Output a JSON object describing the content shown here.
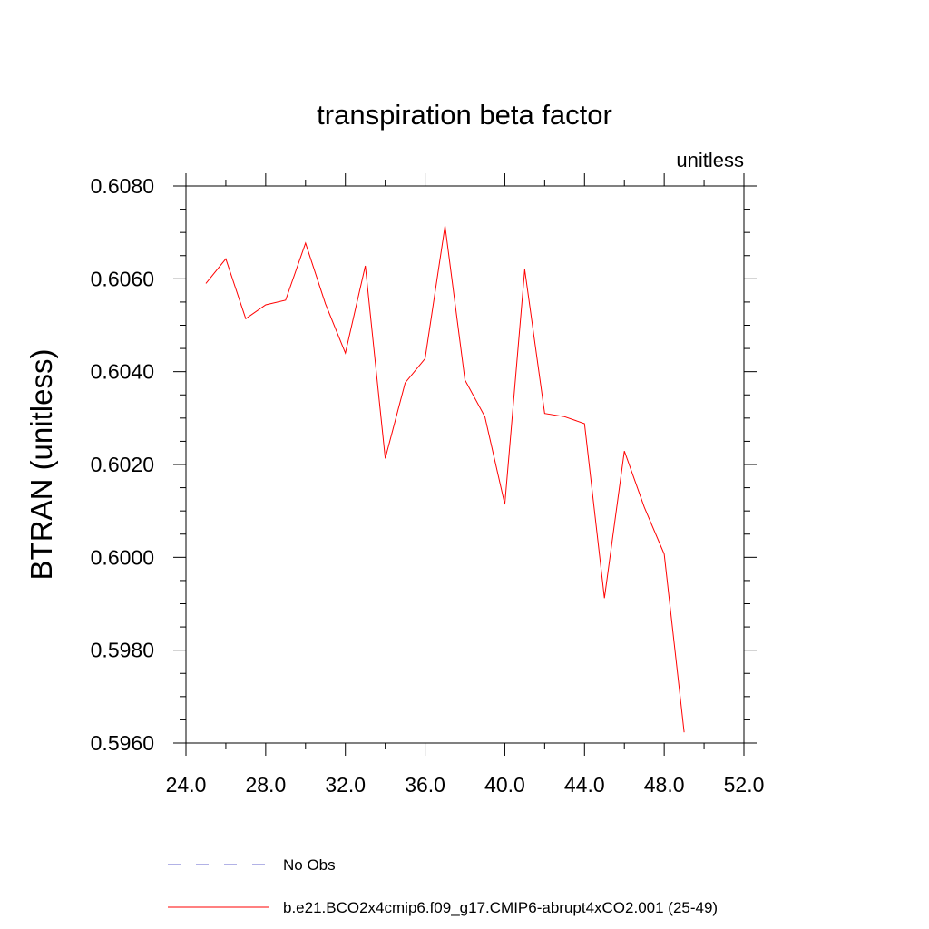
{
  "chart_data": {
    "type": "line",
    "title": "transpiration beta factor",
    "units_label": "unitless",
    "ylabel": "BTRAN  (unitless)",
    "xlabel": "",
    "xlim": [
      24.0,
      52.0
    ],
    "ylim": [
      0.596,
      0.608
    ],
    "x_ticks": [
      24,
      28,
      32,
      36,
      40,
      44,
      48,
      52
    ],
    "x_tick_labels": [
      "24.0",
      "28.0",
      "32.0",
      "36.0",
      "40.0",
      "44.0",
      "48.0",
      "52.0"
    ],
    "y_ticks": [
      0.596,
      0.598,
      0.6,
      0.602,
      0.604,
      0.606,
      0.608
    ],
    "y_tick_labels": [
      "0.5960",
      "0.5980",
      "0.6000",
      "0.6020",
      "0.6040",
      "0.6060",
      "0.6080"
    ],
    "grid": false,
    "series": [
      {
        "name": "b.e21.BCO2x4cmip6.f09_g17.CMIP6-abrupt4xCO2.001 (25-49)",
        "color": "#ff0000",
        "dash": "solid",
        "x": [
          25,
          26,
          27,
          28,
          29,
          30,
          31,
          32,
          33,
          34,
          35,
          36,
          37,
          38,
          39,
          40,
          41,
          42,
          43,
          44,
          45,
          46,
          47,
          48,
          49
        ],
        "values": [
          0.6059,
          0.60643,
          0.60514,
          0.60544,
          0.60554,
          0.60677,
          0.60546,
          0.6044,
          0.60628,
          0.60213,
          0.60376,
          0.60428,
          0.60714,
          0.60382,
          0.60303,
          0.60114,
          0.6062,
          0.6031,
          0.60303,
          0.60288,
          0.59912,
          0.60229,
          0.60108,
          0.60007,
          0.59623
        ]
      }
    ],
    "legend": {
      "placement": "bottom",
      "entries": [
        {
          "label": "No Obs",
          "color": "#6666cc",
          "dash": "dashed"
        },
        {
          "label": "b.e21.BCO2x4cmip6.f09_g17.CMIP6-abrupt4xCO2.001 (25-49)",
          "color": "#ff0000",
          "dash": "solid"
        }
      ]
    }
  }
}
